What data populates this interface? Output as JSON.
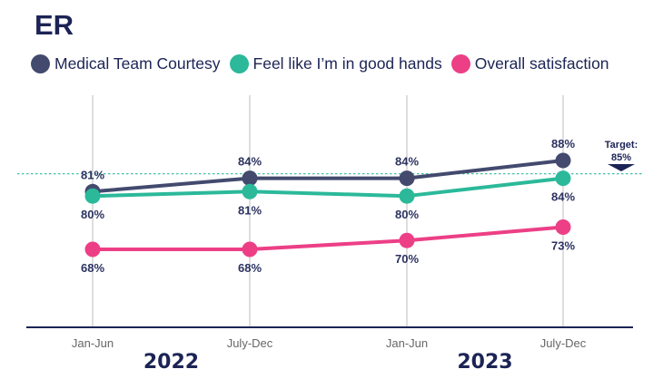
{
  "chart_data": {
    "type": "line",
    "title": "ER",
    "xlabel": "",
    "ylabel": "",
    "categories": [
      "Jan-Jun",
      "July-Dec",
      "Jan-Jun",
      "July-Dec"
    ],
    "year_groups": [
      {
        "label": "2022",
        "categories": [
          0,
          1
        ]
      },
      {
        "label": "2023",
        "categories": [
          2,
          3
        ]
      }
    ],
    "series": [
      {
        "name": "Medical Team Courtesy",
        "color": "#434a6e",
        "values": [
          81,
          84,
          84,
          88
        ],
        "labels": [
          "81%",
          "84%",
          "84%",
          "88%"
        ],
        "label_position": "above"
      },
      {
        "name": "Feel like I’m in good hands",
        "color": "#2bb99a",
        "values": [
          80,
          81,
          80,
          84
        ],
        "labels": [
          "80%",
          "81%",
          "80%",
          "84%"
        ],
        "label_position": "below"
      },
      {
        "name": "Overall satisfaction",
        "color": "#ec3f86",
        "values": [
          68,
          68,
          70,
          73
        ],
        "labels": [
          "68%",
          "68%",
          "70%",
          "73%"
        ],
        "label_position": "below"
      }
    ],
    "target": {
      "value": 85,
      "label_line1": "Target:",
      "label_line2": "85%",
      "color": "#2bb99a"
    },
    "grid": "vertical",
    "legend": "top-left",
    "ylim": [
      50,
      95
    ]
  }
}
